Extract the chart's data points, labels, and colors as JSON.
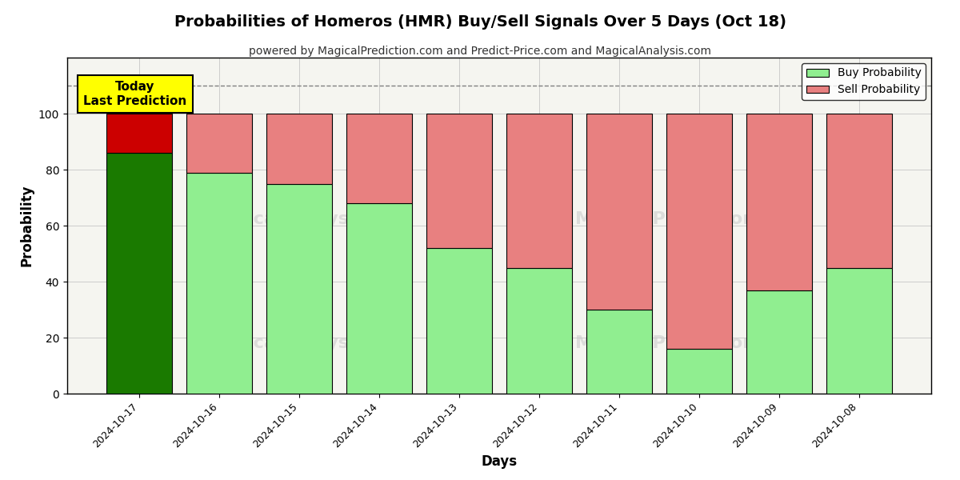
{
  "title": "Probabilities of Homeros (HMR) Buy/Sell Signals Over 5 Days (Oct 18)",
  "subtitle": "powered by MagicalPrediction.com and Predict-Price.com and MagicalAnalysis.com",
  "xlabel": "Days",
  "ylabel": "Probability",
  "dates": [
    "2024-10-17",
    "2024-10-16",
    "2024-10-15",
    "2024-10-14",
    "2024-10-13",
    "2024-10-12",
    "2024-10-11",
    "2024-10-10",
    "2024-10-09",
    "2024-10-08"
  ],
  "buy_values": [
    86,
    79,
    75,
    68,
    52,
    45,
    30,
    16,
    37,
    45
  ],
  "sell_values": [
    14,
    21,
    25,
    32,
    48,
    55,
    70,
    84,
    63,
    55
  ],
  "buy_color_today": "#1a7a00",
  "sell_color_today": "#cc0000",
  "buy_color_rest": "#90ee90",
  "sell_color_rest": "#e88080",
  "bar_edge_color": "black",
  "bar_edge_width": 0.8,
  "ylim": [
    0,
    120
  ],
  "yticks": [
    0,
    20,
    40,
    60,
    80,
    100
  ],
  "dashed_line_y": 110,
  "annotation_text": "Today\nLast Prediction",
  "legend_buy_label": "Buy Probability",
  "legend_sell_label": "Sell Probability",
  "background_color": "#ffffff",
  "plot_bg_color": "#f5f5f0",
  "grid_color": "#cccccc",
  "watermark_color": "#c8c8c8",
  "watermark_alpha": 0.55
}
